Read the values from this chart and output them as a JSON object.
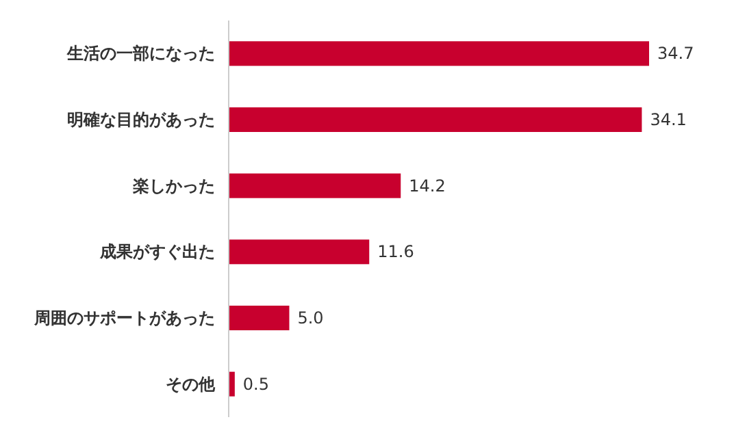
{
  "chart_data": {
    "type": "bar",
    "orientation": "horizontal",
    "categories": [
      "生活の一部になった",
      "明確な目的があった",
      "楽しかった",
      "成果がすぐ出た",
      "周囲のサポートがあった",
      "その他"
    ],
    "values": [
      34.7,
      34.1,
      14.2,
      11.6,
      5.0,
      0.5
    ],
    "value_labels": [
      "34.7",
      "34.1",
      "14.2",
      "11.6",
      "5.0",
      "0.5"
    ],
    "color": "#c8002e"
  }
}
